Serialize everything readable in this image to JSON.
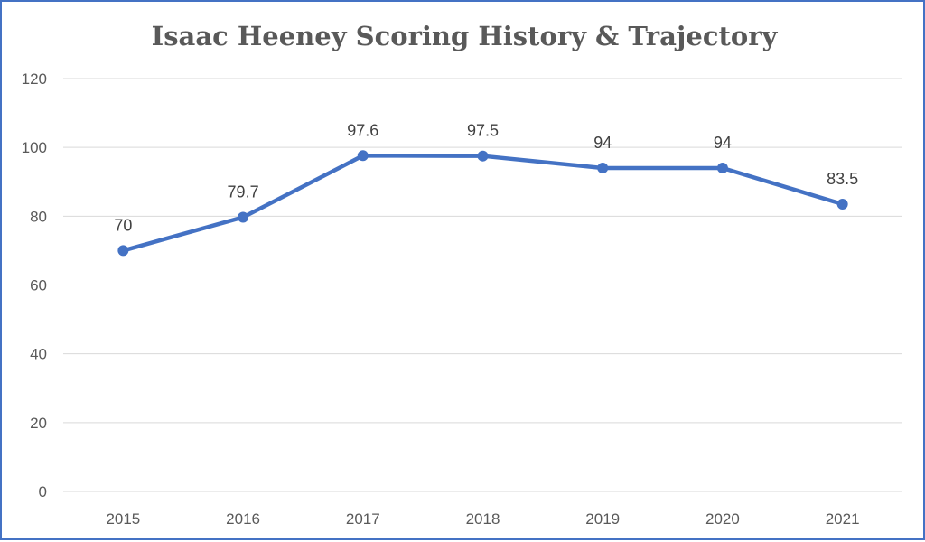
{
  "chart_data": {
    "type": "line",
    "title": "Isaac Heeney Scoring History & Trajectory",
    "xlabel": "",
    "ylabel": "",
    "categories": [
      "2015",
      "2016",
      "2017",
      "2018",
      "2019",
      "2020",
      "2021"
    ],
    "series": [
      {
        "values": [
          70,
          79.7,
          97.6,
          97.5,
          94,
          94,
          83.5
        ],
        "data_labels": [
          "70",
          "79.7",
          "97.6",
          "97.5",
          "94",
          "94",
          "83.5"
        ],
        "color": "#4472c4"
      }
    ],
    "ylim": [
      0,
      120
    ],
    "yticks": [
      0,
      20,
      40,
      60,
      80,
      100,
      120
    ],
    "ytick_labels": [
      "0",
      "20",
      "40",
      "60",
      "80",
      "100",
      "120"
    ],
    "grid": true,
    "gridline_color": "#d9d9d9",
    "frame_color": "#4472c4",
    "legend": "none"
  }
}
